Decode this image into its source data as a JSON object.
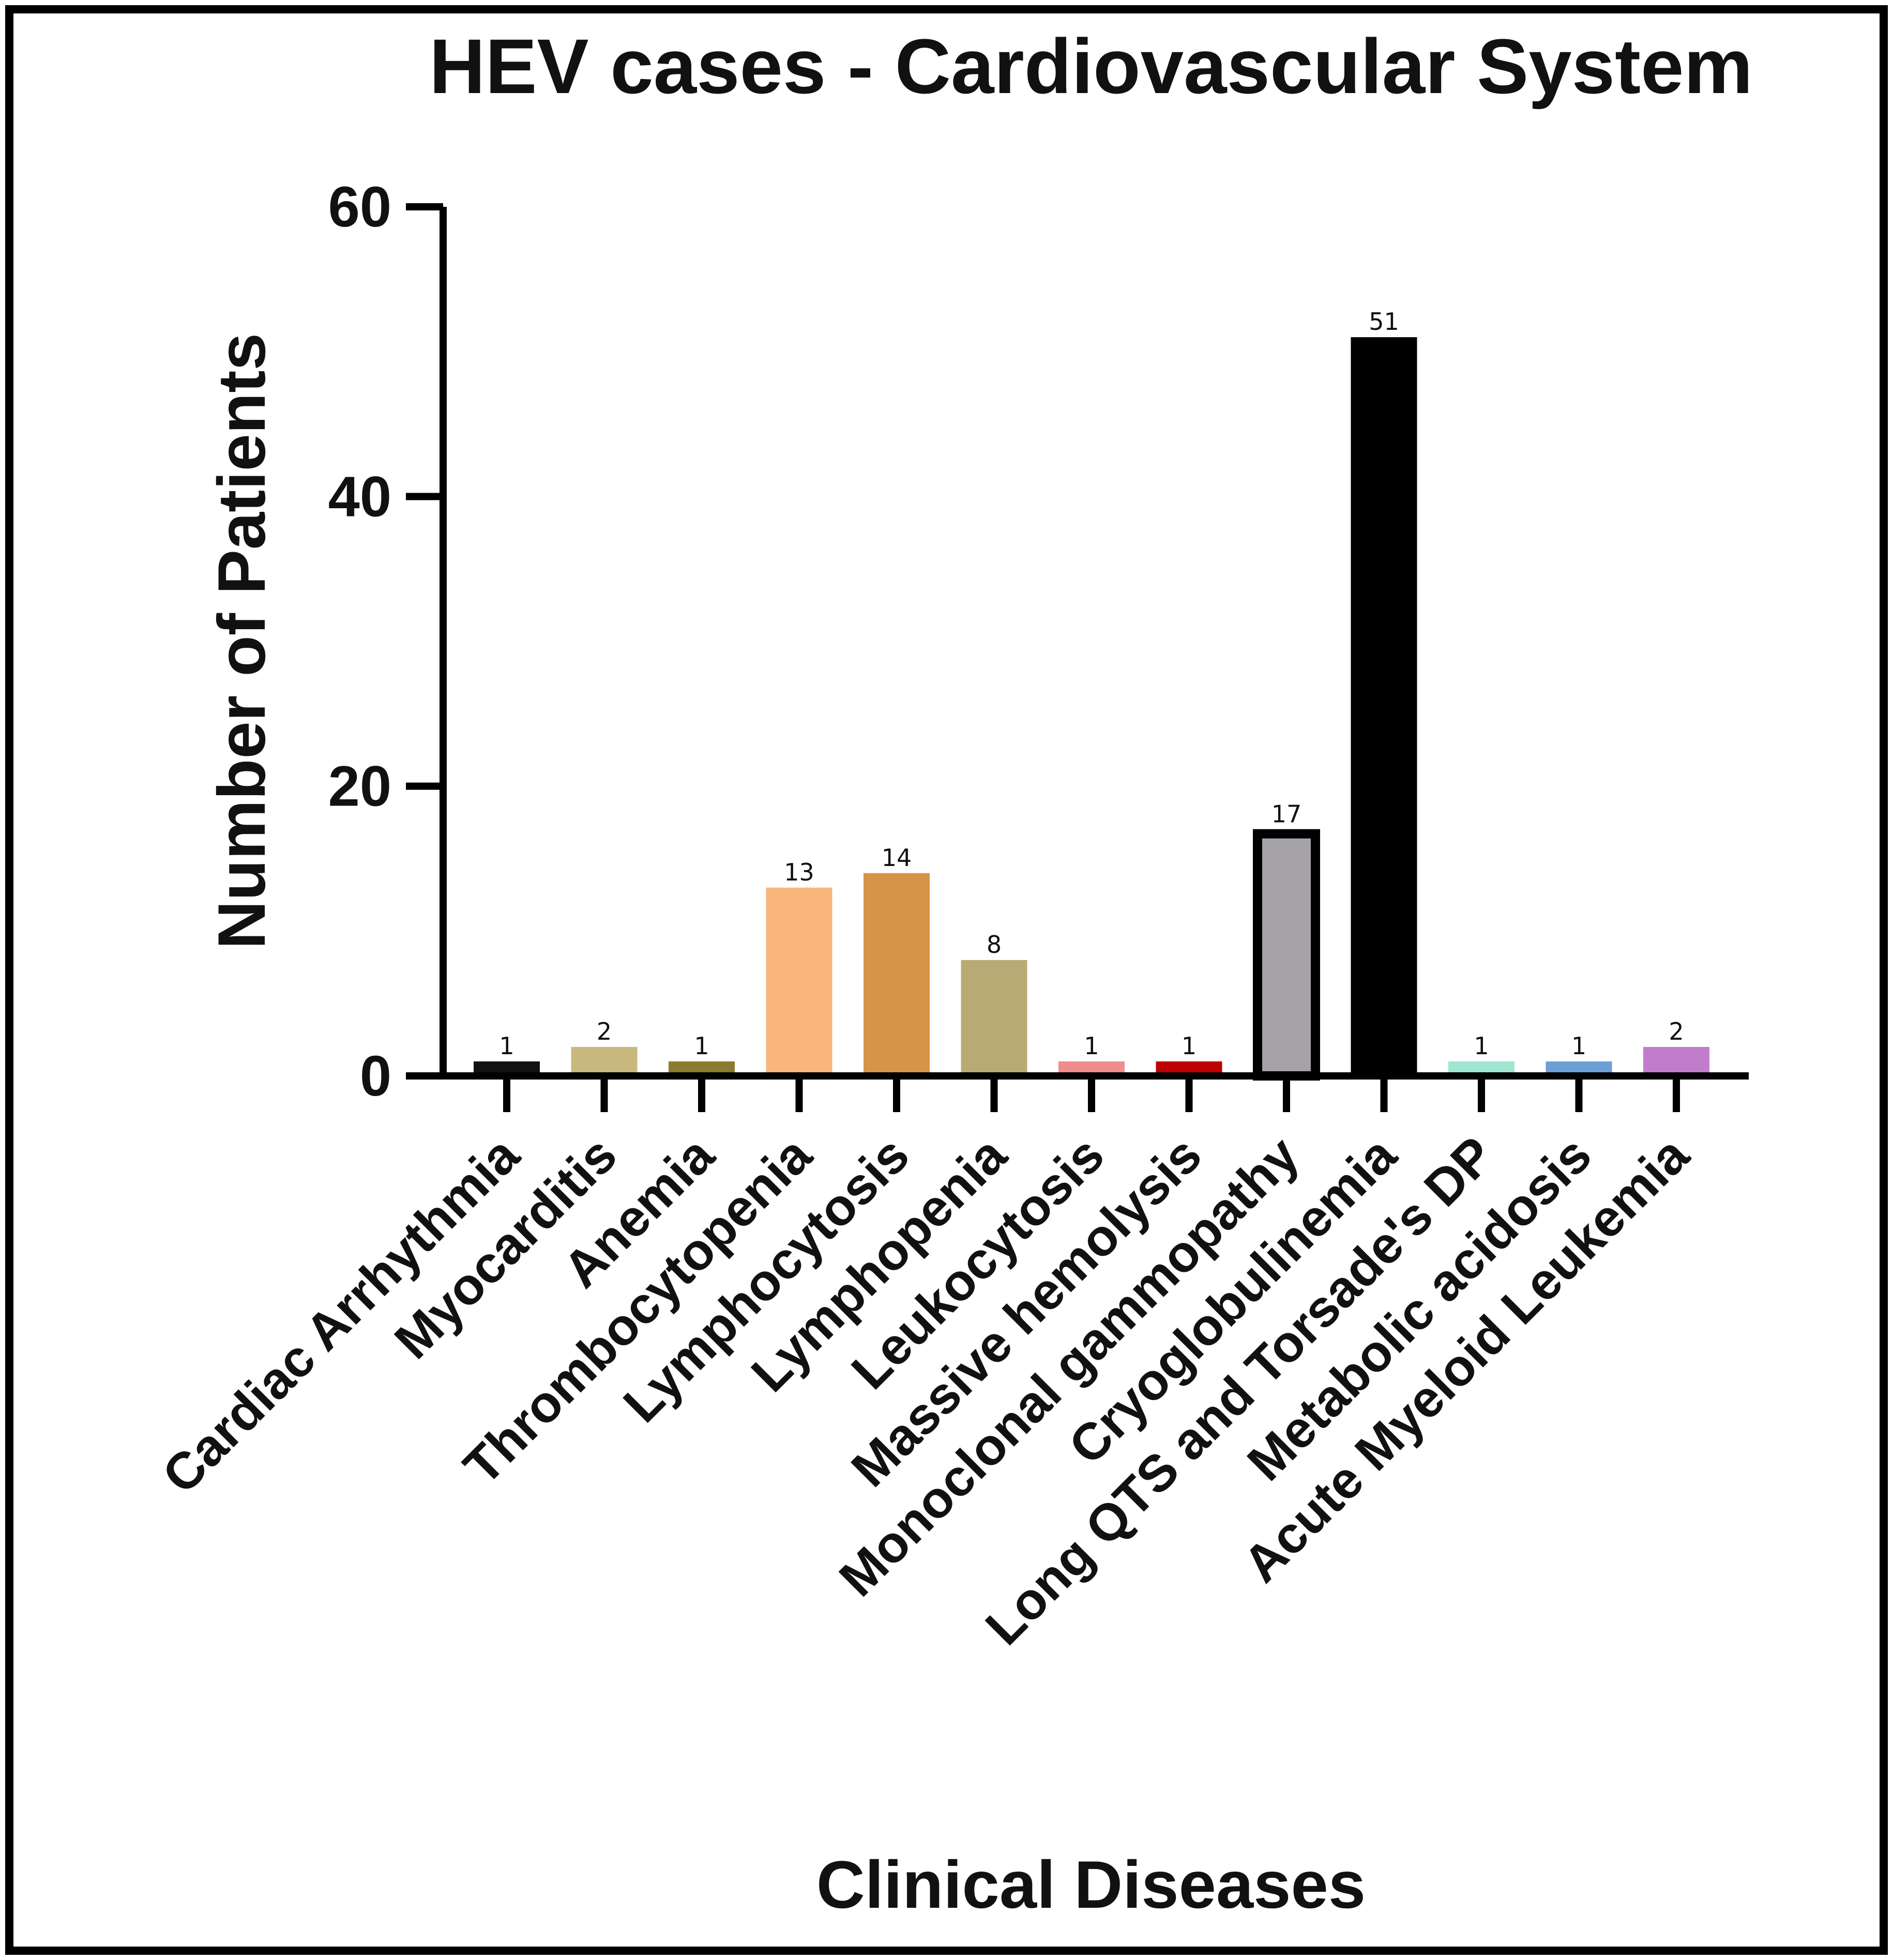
{
  "chart_data": {
    "type": "bar",
    "title": "HEV cases - Cardiovascular System",
    "xlabel": "Clinical Diseases",
    "ylabel": "Number of Patients",
    "ylim": [
      0,
      60
    ],
    "yticks": [
      0,
      20,
      40,
      60
    ],
    "grid": false,
    "categories": [
      "Cardiac Arrhythmia",
      "Myocarditis",
      "Anemia",
      "Thrombocytopenia",
      "Lymphocytosis",
      "Lymphopenia",
      "Leukocytosis",
      "Massive hemolysis",
      "Monoclonal gammopathy",
      "Cryoglobulinemia",
      "Long QTS and Torsade's DP",
      "Metabolic acidosis",
      "Acute Myeloid Leukemia"
    ],
    "values": [
      1,
      2,
      1,
      13,
      14,
      8,
      1,
      1,
      17,
      51,
      1,
      1,
      2
    ],
    "colors": [
      "#111111",
      "#c8b87e",
      "#8c7a2e",
      "#f9b57a",
      "#d69448",
      "#b8aa74",
      "#f08c8c",
      "#c00000",
      "#a5a3a8",
      "#000000",
      "#9ee6d2",
      "#6c9fd4",
      "#c27ccc"
    ],
    "outlined": [
      false,
      false,
      false,
      false,
      false,
      false,
      false,
      false,
      true,
      false,
      false,
      false,
      false
    ]
  }
}
